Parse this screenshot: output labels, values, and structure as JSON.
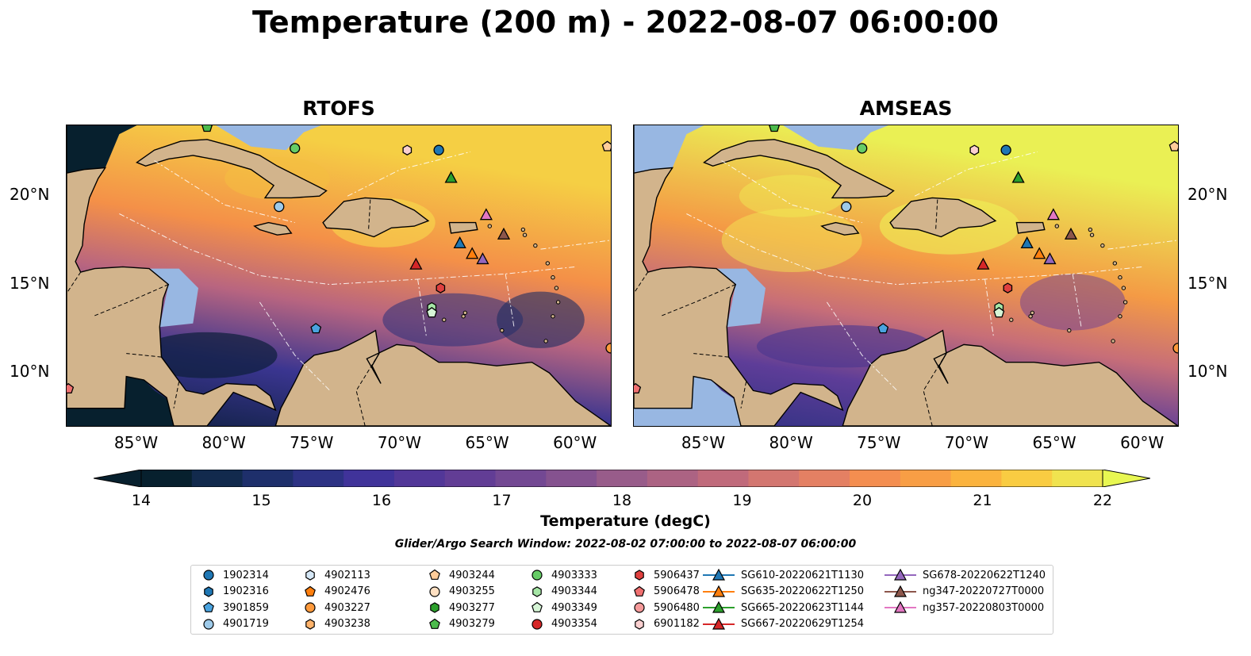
{
  "title": "Temperature (200 m) - 2022-08-07 06:00:00",
  "panels": [
    {
      "title": "RTOFS"
    },
    {
      "title": "AMSEAS"
    }
  ],
  "lon_ticks": [
    "85°W",
    "80°W",
    "75°W",
    "70°W",
    "65°W",
    "60°W"
  ],
  "lat_ticks": [
    "20°N",
    "15°N",
    "10°N"
  ],
  "map_extent": {
    "lon": [
      -89,
      -58
    ],
    "lat": [
      7,
      24
    ]
  },
  "colorbar": {
    "title": "Temperature (degC)",
    "ticks": [
      "14",
      "15",
      "16",
      "17",
      "18",
      "19",
      "20",
      "21",
      "22"
    ],
    "range": [
      14,
      22
    ],
    "colors": [
      "#07202e",
      "#122a4d",
      "#1e2f6b",
      "#2d3284",
      "#40339a",
      "#523798",
      "#623d95",
      "#734893",
      "#85528f",
      "#985c8a",
      "#ac6383",
      "#c06a7b",
      "#d37670",
      "#e48063",
      "#f48e50",
      "#f89e45",
      "#fbb33e",
      "#f9cc42",
      "#f0e34f"
    ],
    "extend_low": "#07202e",
    "extend_high": "#e8f752"
  },
  "search_window": "Glider/Argo Search Window: 2022-08-02 07:00:00 to 2022-08-07 06:00:00",
  "colors": {
    "land": "#d2b48c",
    "shelf": "#98b7e2"
  },
  "legend": [
    {
      "label": "1902314",
      "marker": "circle",
      "color": "#1f77b4"
    },
    {
      "label": "1902316",
      "marker": "hexagon",
      "color": "#1f77b4"
    },
    {
      "label": "3901859",
      "marker": "pentagon",
      "color": "#4aa3df"
    },
    {
      "label": "4901719",
      "marker": "circle",
      "color": "#9ecae9"
    },
    {
      "label": "4902113",
      "marker": "hexagon",
      "color": "#d6e8f7"
    },
    {
      "label": "4902476",
      "marker": "pentagon",
      "color": "#ff7f0e"
    },
    {
      "label": "4903227",
      "marker": "circle",
      "color": "#ff9a3c"
    },
    {
      "label": "4903238",
      "marker": "hexagon",
      "color": "#ffb36b"
    },
    {
      "label": "4903244",
      "marker": "pentagon",
      "color": "#ffcc99"
    },
    {
      "label": "4903255",
      "marker": "circle",
      "color": "#ffe0c2"
    },
    {
      "label": "4903277",
      "marker": "hexagon",
      "color": "#2ca02c"
    },
    {
      "label": "4903279",
      "marker": "pentagon",
      "color": "#4cbb4c"
    },
    {
      "label": "4903333",
      "marker": "circle",
      "color": "#66cc66"
    },
    {
      "label": "4903344",
      "marker": "hexagon",
      "color": "#a6e6a6"
    },
    {
      "label": "4903349",
      "marker": "pentagon",
      "color": "#d6f5d6"
    },
    {
      "label": "4903354",
      "marker": "circle",
      "color": "#d62728"
    },
    {
      "label": "5906437",
      "marker": "hexagon",
      "color": "#e0403f"
    },
    {
      "label": "5906478",
      "marker": "pentagon",
      "color": "#f07070"
    },
    {
      "label": "5906480",
      "marker": "circle",
      "color": "#f59a9a"
    },
    {
      "label": "6901182",
      "marker": "hexagon",
      "color": "#fbd0d0"
    },
    {
      "label": "SG610-20220621T1130",
      "marker": "triangle-line",
      "color": "#1f77b4"
    },
    {
      "label": "SG635-20220622T1250",
      "marker": "triangle-line",
      "color": "#ff7f0e"
    },
    {
      "label": "SG665-20220623T1144",
      "marker": "triangle-line",
      "color": "#2ca02c"
    },
    {
      "label": "SG667-20220629T1254",
      "marker": "triangle-line",
      "color": "#d62728"
    },
    {
      "label": "SG678-20220622T1240",
      "marker": "triangle-line",
      "color": "#9467bd"
    },
    {
      "label": "ng347-20220727T0000",
      "marker": "triangle-line",
      "color": "#8c564b"
    },
    {
      "label": "ng357-20220803T0000",
      "marker": "triangle-line",
      "color": "#e377c2"
    }
  ],
  "observations": [
    {
      "id": "1902314",
      "lon": -67.8,
      "lat": 22.6,
      "marker": "circle",
      "color": "#1f77b4"
    },
    {
      "id": "4901719",
      "lon": -76.9,
      "lat": 19.4,
      "marker": "circle",
      "color": "#9ecae9"
    },
    {
      "id": "4903333",
      "lon": -76.0,
      "lat": 22.7,
      "marker": "circle",
      "color": "#66cc66"
    },
    {
      "id": "6901182",
      "lon": -69.6,
      "lat": 22.6,
      "marker": "hexagon",
      "color": "#fbd0d0"
    },
    {
      "id": "4903244",
      "lon": -58.2,
      "lat": 22.8,
      "marker": "pentagon",
      "color": "#ffcc99"
    },
    {
      "id": "4903279",
      "lon": -81.0,
      "lat": 23.9,
      "marker": "pentagon",
      "color": "#4cbb4c"
    },
    {
      "id": "4903344",
      "lon": -68.2,
      "lat": 13.7,
      "marker": "hexagon",
      "color": "#a6e6a6"
    },
    {
      "id": "4903349",
      "lon": -68.2,
      "lat": 13.4,
      "marker": "pentagon",
      "color": "#d6f5d6"
    },
    {
      "id": "5906437",
      "lon": -67.7,
      "lat": 14.8,
      "marker": "hexagon",
      "color": "#e0403f"
    },
    {
      "id": "3901859",
      "lon": -74.8,
      "lat": 12.5,
      "marker": "pentagon",
      "color": "#4aa3df"
    },
    {
      "id": "5906478",
      "lon": -88.9,
      "lat": 9.1,
      "marker": "pentagon",
      "color": "#f07070"
    },
    {
      "id": "4903227",
      "lon": -58.0,
      "lat": 11.4,
      "marker": "circle",
      "color": "#ff9a3c"
    },
    {
      "id": "SG665-20220623T1144",
      "lon": -67.1,
      "lat": 21.0,
      "marker": "triangle",
      "color": "#2ca02c"
    },
    {
      "id": "SG610-20220621T1130",
      "lon": -66.6,
      "lat": 17.3,
      "marker": "triangle",
      "color": "#1f77b4"
    },
    {
      "id": "SG635-20220622T1250",
      "lon": -65.9,
      "lat": 16.7,
      "marker": "triangle",
      "color": "#ff7f0e"
    },
    {
      "id": "SG678-20220622T1240",
      "lon": -65.3,
      "lat": 16.4,
      "marker": "triangle",
      "color": "#9467bd"
    },
    {
      "id": "ng357-20220803T0000",
      "lon": -65.1,
      "lat": 18.9,
      "marker": "triangle",
      "color": "#e377c2"
    },
    {
      "id": "ng347-20220727T0000",
      "lon": -64.1,
      "lat": 17.8,
      "marker": "triangle",
      "color": "#8c564b"
    },
    {
      "id": "SG667-20220629T1254",
      "lon": -69.1,
      "lat": 16.1,
      "marker": "triangle",
      "color": "#d62728"
    }
  ]
}
